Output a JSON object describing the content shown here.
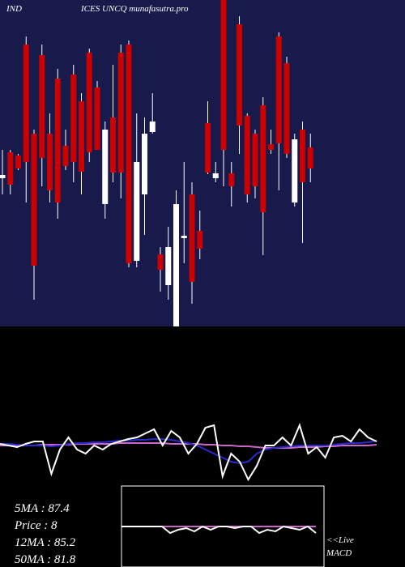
{
  "chart_data": [
    {
      "type": "candlestick",
      "title_left": "IND",
      "title": "ICES UNCQ munafasutra.pro",
      "up_color": "#ffffff",
      "down_color": "#cc0000",
      "background": "#191a4c",
      "ylim": [
        0,
        403
      ],
      "open": [
        183,
        215,
        211,
        348,
        238,
        335,
        238,
        306,
        223,
        311,
        278,
        338,
        295,
        151,
        258,
        338,
        348,
        81,
        163,
        240,
        89,
        51,
        0,
        109,
        163,
        118,
        251,
        183,
        403,
        189,
        373,
        260,
        238,
        273,
        225,
        358,
        325,
        153,
        243,
        221
      ],
      "high": [
        218,
        218,
        213,
        358,
        243,
        348,
        263,
        318,
        243,
        323,
        288,
        343,
        303,
        253,
        323,
        348,
        353,
        263,
        258,
        288,
        98,
        123,
        168,
        203,
        178,
        143,
        278,
        203,
        403,
        203,
        383,
        263,
        243,
        283,
        243,
        363,
        333,
        238,
        253,
        238
      ],
      "low": [
        163,
        163,
        193,
        153,
        33,
        173,
        153,
        133,
        193,
        178,
        163,
        203,
        218,
        133,
        178,
        158,
        73,
        73,
        113,
        238,
        43,
        33,
        0,
        78,
        28,
        83,
        188,
        178,
        173,
        148,
        213,
        153,
        158,
        88,
        213,
        168,
        208,
        148,
        103,
        178
      ],
      "close": [
        187,
        175,
        195,
        203,
        75,
        208,
        168,
        153,
        198,
        203,
        191,
        215,
        218,
        243,
        190,
        190,
        78,
        203,
        238,
        253,
        70,
        98,
        151,
        112,
        55,
        96,
        190,
        189,
        218,
        173,
        248,
        163,
        173,
        141,
        218,
        226,
        213,
        231,
        178,
        195
      ]
    },
    {
      "type": "line",
      "background": "#000000",
      "ylim": [
        0,
        100
      ],
      "series": [
        {
          "color": "#cc66cc",
          "values": [
            50,
            50,
            50,
            50,
            50,
            51,
            51,
            51,
            51,
            52,
            52,
            52,
            52,
            52,
            53,
            53,
            53,
            53,
            53,
            53,
            52,
            52,
            52,
            52,
            51,
            51,
            50,
            50,
            49,
            49,
            48,
            47,
            47,
            47,
            47,
            48,
            48,
            48,
            49,
            49,
            50,
            50,
            50,
            50,
            51
          ]
        },
        {
          "color": "#2a2ad0",
          "values": [
            52,
            52,
            51,
            50,
            50,
            50,
            49,
            50,
            52,
            53,
            53,
            54,
            54,
            55,
            56,
            56,
            57,
            57,
            58,
            58,
            57,
            55,
            53,
            50,
            45,
            40,
            35,
            30,
            28,
            30,
            40,
            45,
            47,
            48,
            49,
            50,
            50,
            50,
            50,
            51,
            52,
            53,
            53,
            54,
            56
          ]
        },
        {
          "color": "#ffffff",
          "values": [
            52,
            50,
            48,
            52,
            55,
            55,
            15,
            45,
            60,
            45,
            40,
            50,
            45,
            52,
            55,
            58,
            60,
            65,
            70,
            50,
            68,
            60,
            40,
            52,
            72,
            75,
            12,
            40,
            30,
            8,
            25,
            50,
            50,
            60,
            50,
            75,
            40,
            48,
            35,
            60,
            62,
            55,
            70,
            60,
            55
          ]
        }
      ],
      "stats": [
        "5MA : 87.4",
        "Price  : 8",
        "12MA : 85.2",
        "50MA : 81.8"
      ]
    },
    {
      "type": "line",
      "title": "<<Live MACD",
      "background": "#000000",
      "ylim": [
        0,
        100
      ],
      "series": [
        {
          "color": "#cc66cc",
          "values": [
            50,
            50,
            50,
            50,
            50,
            50,
            50,
            50,
            50,
            50,
            50,
            50,
            50,
            50,
            50,
            50,
            50,
            50,
            50,
            50,
            50,
            50,
            50,
            50,
            50
          ]
        },
        {
          "color": "#ffffff",
          "values": [
            50,
            50,
            50,
            50,
            50,
            50,
            42,
            46,
            48,
            44,
            50,
            46,
            50,
            50,
            48,
            50,
            50,
            42,
            46,
            44,
            50,
            48,
            46,
            50,
            42
          ]
        }
      ]
    }
  ]
}
